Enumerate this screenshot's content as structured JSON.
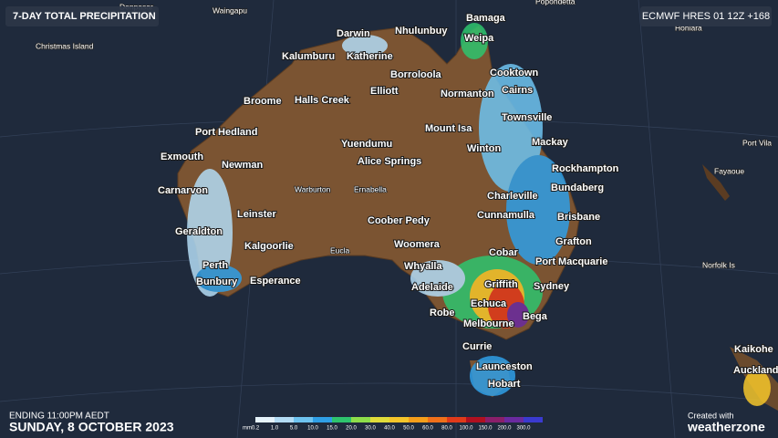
{
  "header": {
    "title": "7-DAY TOTAL PRECIPITATION",
    "model": "ECMWF HRES 01 12Z +168"
  },
  "places": [
    "Christmas Island",
    "Denpasar",
    "Waingapu",
    "Popondetta",
    "Honiara",
    "Darwin",
    "Nhulunbuy",
    "Bamaga",
    "Weipa",
    "Kalumburu",
    "Katherine",
    "Borroloola",
    "Cooktown",
    "Elliott",
    "Normanton",
    "Cairns",
    "Broome",
    "Halls Creek",
    "Mount Isa",
    "Townsville",
    "Port Hedland",
    "Yuendumu",
    "Winton",
    "Mackay",
    "Exmouth",
    "Newman",
    "Alice Springs",
    "Rockhampton",
    "Carnarvon",
    "Warburton",
    "Ernabella",
    "Charleville",
    "Bundaberg",
    "Leinster",
    "Coober Pedy",
    "Cunnamulla",
    "Brisbane",
    "Geraldton",
    "Kalgoorlie",
    "Eucla",
    "Woomera",
    "Cobar",
    "Grafton",
    "Perth",
    "Whyalla",
    "Port Macquarie",
    "Norfolk Is",
    "Bunbury",
    "Esperance",
    "Adelaide",
    "Griffith",
    "Sydney",
    "Echuca",
    "Robe",
    "Bega",
    "Melbourne",
    "Currie",
    "Launceston",
    "Hobart",
    "Kaikohe",
    "Auckland",
    "Port Vila",
    "Fayaoue"
  ],
  "legend": {
    "unit": "mm",
    "labels": [
      "0.2",
      "1.0",
      "5.0",
      "10.0",
      "15.0",
      "20.0",
      "30.0",
      "40.0",
      "50.0",
      "60.0",
      "80.0",
      "100.0",
      "150.0",
      "200.0",
      "300.0"
    ],
    "colors": [
      "#e6f3fb",
      "#b3dcf5",
      "#6ec3f0",
      "#2f9fe6",
      "#2ec46e",
      "#8ede4a",
      "#e0dc3a",
      "#f5c52a",
      "#f59e1a",
      "#f0701a",
      "#e03a1a",
      "#b01020",
      "#8a1f6a",
      "#6a2aa0",
      "#3a3ad0"
    ]
  },
  "footer": {
    "ending": "ENDING 11:00PM AEDT",
    "date": "SUNDAY, 8 OCTOBER 2023",
    "created": "Created with",
    "brand": "weatherzone"
  }
}
